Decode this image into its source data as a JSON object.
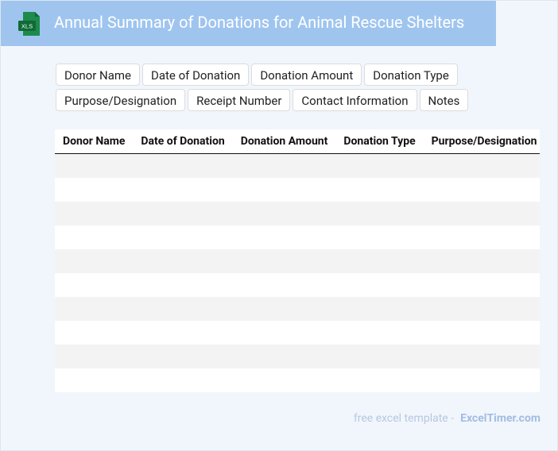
{
  "header": {
    "icon": "XLS",
    "title": "Annual Summary of Donations for Animal Rescue Shelters"
  },
  "tags": [
    "Donor Name",
    "Date of Donation",
    "Donation Amount",
    "Donation Type",
    "Purpose/Designation",
    "Receipt Number",
    "Contact Information",
    "Notes"
  ],
  "table": {
    "columns": [
      "Donor Name",
      "Date of Donation",
      "Donation Amount",
      "Donation Type",
      "Purpose/Designation"
    ]
  },
  "footer": {
    "text": "free excel template -",
    "link": "ExcelTimer.com"
  }
}
